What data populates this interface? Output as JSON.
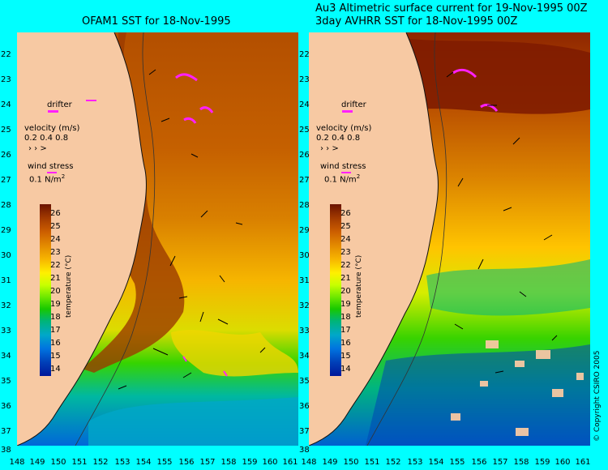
{
  "left_panel": {
    "title": "OFAM1 SST for 18-Nov-1995"
  },
  "right_panel": {
    "title_line1": "Au3 Altimetric surface current for 19-Nov-1995 00Z",
    "title_line2": "3day AVHRR SST for 18-Nov-1995 00Z"
  },
  "latitude_labels": [
    "22",
    "23",
    "24",
    "25",
    "26",
    "27",
    "28",
    "29",
    "30",
    "31",
    "32",
    "33",
    "34",
    "35",
    "36",
    "37",
    "38"
  ],
  "longitude_labels": [
    "148",
    "149",
    "150",
    "151",
    "152",
    "153",
    "154",
    "155",
    "156",
    "157",
    "158",
    "159",
    "160",
    "161"
  ],
  "legend": {
    "drifter": "drifter",
    "velocity": "velocity (m/s)",
    "velocity_scale": "0.2 0.4 0.8",
    "wind_stress": "wind stress",
    "wind_scale": "0.1 N/m"
  },
  "colorbar": {
    "title": "temperature (°C)",
    "ticks": [
      "26",
      "25",
      "24",
      "23",
      "22",
      "21",
      "20",
      "19",
      "18",
      "17",
      "16",
      "15",
      "14"
    ],
    "colors": [
      "#6a1300",
      "#a23a00",
      "#cc5e00",
      "#e38a00",
      "#f7b500",
      "#fff000",
      "#c8ff00",
      "#6ee800",
      "#18c800",
      "#00b478",
      "#00a8c8",
      "#0074e0",
      "#0040b8",
      "#00189a"
    ]
  },
  "copyright": "© Copyright CSIRO 2005",
  "colors": {
    "background": "#00ffff",
    "land": "#f7c9a3",
    "warm": "#a84200",
    "cool": "#0061cf"
  }
}
